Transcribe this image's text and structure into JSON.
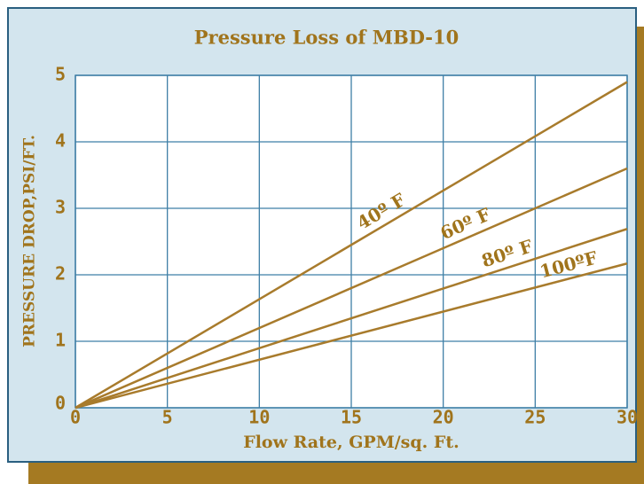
{
  "chart_data": {
    "type": "line",
    "title": "Pressure Loss of MBD-10",
    "x_label": "Flow Rate, GPM/sq. Ft.",
    "y_label": "PRESSURE DROP,PSI/FT.",
    "x": [
      0,
      30
    ],
    "series": [
      {
        "name": "40º F",
        "color": "#a87b2c",
        "values": [
          0,
          4.9
        ]
      },
      {
        "name": "60º F",
        "color": "#a87b2c",
        "values": [
          0,
          3.6
        ]
      },
      {
        "name": "80º F",
        "color": "#a87b2c",
        "values": [
          0,
          2.69
        ]
      },
      {
        "name": "100ºF",
        "color": "#a87b2c",
        "values": [
          0,
          2.17
        ]
      }
    ],
    "xlim": [
      0,
      30
    ],
    "xticks": [
      0,
      5,
      10,
      15,
      20,
      25,
      30
    ],
    "ylim": [
      0,
      5
    ],
    "yticks": [
      0,
      1,
      2,
      3,
      4,
      5
    ],
    "grid": true
  }
}
